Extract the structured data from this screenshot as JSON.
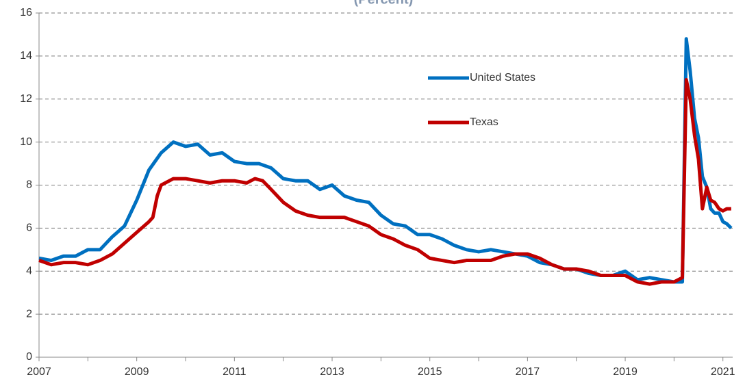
{
  "chart_data": {
    "type": "line",
    "subtitle": "(Percent)",
    "xlim": [
      2007,
      2021.2
    ],
    "xticks": [
      2007,
      2009,
      2011,
      2013,
      2015,
      2017,
      2019,
      2021
    ],
    "x_minor_ticks": [
      2008,
      2010,
      2012,
      2014,
      2016,
      2018,
      2020
    ],
    "ylim": [
      0,
      16
    ],
    "yticks": [
      0,
      2,
      4,
      6,
      8,
      10,
      12,
      14,
      16
    ],
    "grid": true,
    "legend": "upper right",
    "series": [
      {
        "name": "United States",
        "color": "#0070c0",
        "x": [
          2007.0,
          2007.25,
          2007.5,
          2007.75,
          2008.0,
          2008.25,
          2008.5,
          2008.75,
          2009.0,
          2009.25,
          2009.5,
          2009.75,
          2010.0,
          2010.25,
          2010.5,
          2010.75,
          2011.0,
          2011.25,
          2011.5,
          2011.75,
          2012.0,
          2012.25,
          2012.5,
          2012.75,
          2013.0,
          2013.25,
          2013.5,
          2013.75,
          2014.0,
          2014.25,
          2014.5,
          2014.75,
          2015.0,
          2015.25,
          2015.5,
          2015.75,
          2016.0,
          2016.25,
          2016.5,
          2016.75,
          2017.0,
          2017.25,
          2017.5,
          2017.75,
          2018.0,
          2018.25,
          2018.5,
          2018.75,
          2019.0,
          2019.25,
          2019.5,
          2019.75,
          2020.0,
          2020.17,
          2020.25,
          2020.33,
          2020.42,
          2020.5,
          2020.58,
          2020.67,
          2020.75,
          2020.83,
          2020.92,
          2021.0,
          2021.08,
          2021.17
        ],
        "values": [
          4.6,
          4.5,
          4.7,
          4.7,
          5.0,
          5.0,
          5.6,
          6.1,
          7.3,
          8.7,
          9.5,
          10.0,
          9.8,
          9.9,
          9.4,
          9.5,
          9.1,
          9.0,
          9.0,
          8.8,
          8.3,
          8.2,
          8.2,
          7.8,
          8.0,
          7.5,
          7.3,
          7.2,
          6.6,
          6.2,
          6.1,
          5.7,
          5.7,
          5.5,
          5.2,
          5.0,
          4.9,
          5.0,
          4.9,
          4.8,
          4.7,
          4.4,
          4.3,
          4.1,
          4.1,
          3.9,
          3.8,
          3.8,
          4.0,
          3.6,
          3.7,
          3.6,
          3.5,
          3.5,
          14.8,
          13.3,
          11.1,
          10.2,
          8.4,
          7.9,
          6.9,
          6.7,
          6.7,
          6.3,
          6.2,
          6.0
        ]
      },
      {
        "name": "Texas",
        "color": "#c00000",
        "x": [
          2007.0,
          2007.25,
          2007.5,
          2007.75,
          2008.0,
          2008.25,
          2008.5,
          2008.75,
          2009.0,
          2009.25,
          2009.33,
          2009.42,
          2009.5,
          2009.75,
          2010.0,
          2010.25,
          2010.5,
          2010.75,
          2011.0,
          2011.25,
          2011.42,
          2011.58,
          2011.75,
          2012.0,
          2012.25,
          2012.5,
          2012.75,
          2013.0,
          2013.25,
          2013.5,
          2013.75,
          2014.0,
          2014.25,
          2014.5,
          2014.75,
          2015.0,
          2015.25,
          2015.5,
          2015.75,
          2016.0,
          2016.25,
          2016.5,
          2016.75,
          2017.0,
          2017.25,
          2017.5,
          2017.75,
          2018.0,
          2018.25,
          2018.5,
          2018.75,
          2019.0,
          2019.25,
          2019.5,
          2019.75,
          2020.0,
          2020.17,
          2020.25,
          2020.33,
          2020.42,
          2020.5,
          2020.58,
          2020.67,
          2020.75,
          2020.83,
          2020.92,
          2021.0,
          2021.08,
          2021.17
        ],
        "values": [
          4.5,
          4.3,
          4.4,
          4.4,
          4.3,
          4.5,
          4.8,
          5.3,
          5.8,
          6.3,
          6.5,
          7.5,
          8.0,
          8.3,
          8.3,
          8.2,
          8.1,
          8.2,
          8.2,
          8.1,
          8.3,
          8.2,
          7.8,
          7.2,
          6.8,
          6.6,
          6.5,
          6.5,
          6.5,
          6.3,
          6.1,
          5.7,
          5.5,
          5.2,
          5.0,
          4.6,
          4.5,
          4.4,
          4.5,
          4.5,
          4.5,
          4.7,
          4.8,
          4.8,
          4.6,
          4.3,
          4.1,
          4.1,
          4.0,
          3.8,
          3.8,
          3.8,
          3.5,
          3.4,
          3.5,
          3.5,
          3.7,
          12.9,
          12.0,
          10.3,
          9.2,
          6.9,
          7.9,
          7.3,
          7.2,
          6.9,
          6.8,
          6.9,
          6.9
        ]
      }
    ]
  }
}
